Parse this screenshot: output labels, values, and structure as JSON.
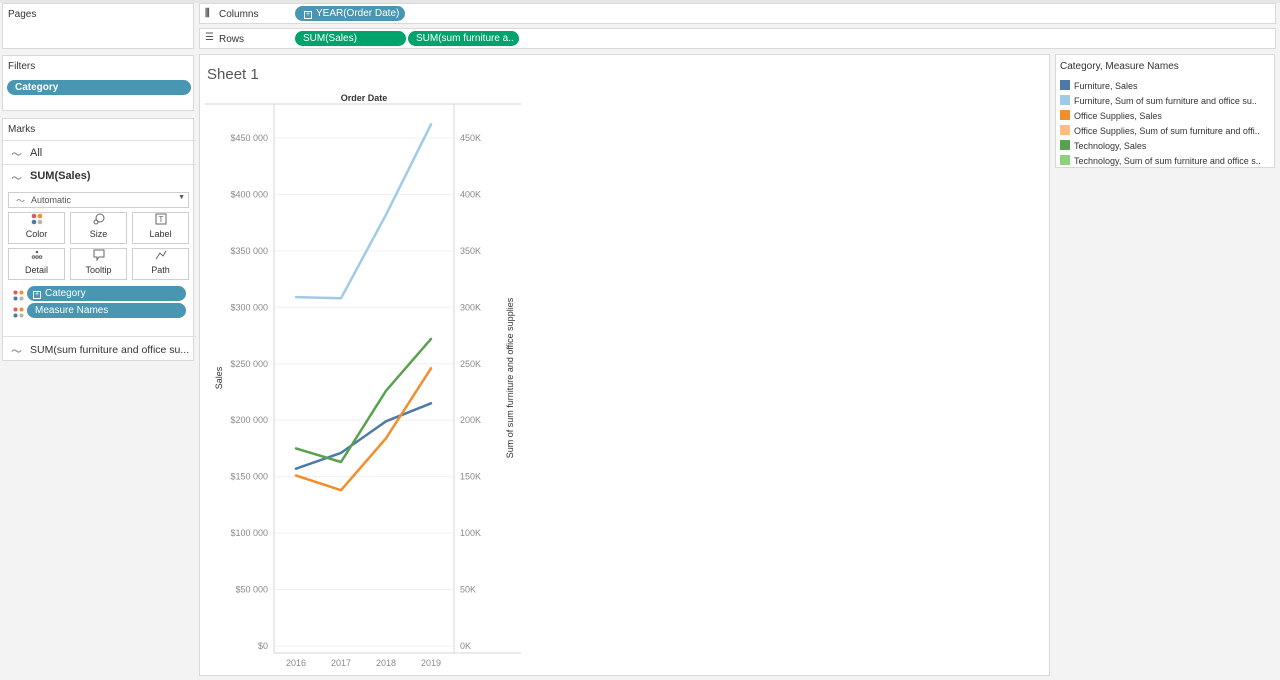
{
  "pages": {
    "title": "Pages"
  },
  "filters": {
    "title": "Filters",
    "pill": "Category"
  },
  "marks": {
    "title": "Marks",
    "all_label": "All",
    "sales_label": "SUM(Sales)",
    "mark_type": "Automatic",
    "buttons": [
      "Color",
      "Size",
      "Label",
      "Detail",
      "Tooltip",
      "Path"
    ],
    "category_pill": "Category",
    "measure_names_pill": "Measure Names",
    "sum_label": "SUM(sum furniture and office su..."
  },
  "columns": {
    "label": "Columns",
    "pill": "YEAR(Order Date)"
  },
  "rows": {
    "label": "Rows",
    "pill1": "SUM(Sales)",
    "pill2": "SUM(sum furniture a.."
  },
  "sheet": {
    "title": "Sheet 1"
  },
  "legend": {
    "title": "Category, Measure Names",
    "items": [
      {
        "label": "Furniture, Sales",
        "color": "#4e79a7"
      },
      {
        "label": "Furniture, Sum of sum furniture and office su..",
        "color": "#a0cbe8"
      },
      {
        "label": "Office Supplies, Sales",
        "color": "#f28e2b"
      },
      {
        "label": "Office Supplies, Sum of sum furniture and offi..",
        "color": "#ffbe7d"
      },
      {
        "label": "Technology, Sales",
        "color": "#59a14f"
      },
      {
        "label": "Technology, Sum of sum furniture and office s..",
        "color": "#8cd17d"
      }
    ]
  },
  "chart_data": {
    "type": "line",
    "header": "Order Date",
    "categories": [
      "2016",
      "2017",
      "2018",
      "2019"
    ],
    "ylabel": "Sales",
    "y2label": "Sum of sum furniture and office supplies",
    "ylim": [
      0,
      480000
    ],
    "yticks": [
      "$0",
      "$50 000",
      "$100 000",
      "$150 000",
      "$200 000",
      "$250 000",
      "$300 000",
      "$350 000",
      "$400 000",
      "$450 000"
    ],
    "y2ticks": [
      "0K",
      "50K",
      "100K",
      "150K",
      "200K",
      "250K",
      "300K",
      "350K",
      "400K",
      "450K"
    ],
    "series": [
      {
        "name": "Furniture, Sales",
        "color": "#4e79a7",
        "values": [
          157000,
          171000,
          199000,
          215000
        ]
      },
      {
        "name": "Furniture, Sum of sum furniture and office supplies",
        "color": "#a0cbe8",
        "values": [
          309000,
          308000,
          382000,
          462000
        ]
      },
      {
        "name": "Office Supplies, Sales",
        "color": "#f28e2b",
        "values": [
          151000,
          138000,
          184000,
          246000
        ]
      },
      {
        "name": "Technology, Sales",
        "color": "#59a14f",
        "values": [
          175000,
          163000,
          226000,
          272000
        ]
      }
    ]
  }
}
